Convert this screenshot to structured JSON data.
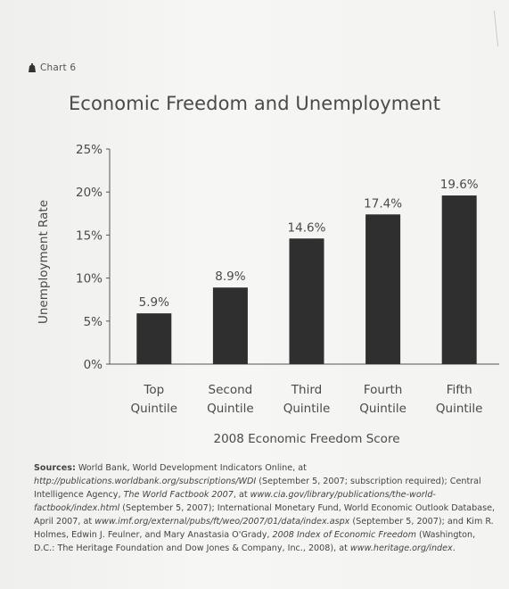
{
  "chart_tag": "Chart 6",
  "chart_data": {
    "type": "bar",
    "title": "Economic Freedom and Unemployment",
    "xlabel": "2008 Economic Freedom Score",
    "ylabel": "Unemployment Rate",
    "categories": [
      [
        "Top",
        "Quintile"
      ],
      [
        "Second",
        "Quintile"
      ],
      [
        "Third",
        "Quintile"
      ],
      [
        "Fourth",
        "Quintile"
      ],
      [
        "Fifth",
        "Quintile"
      ]
    ],
    "values": [
      5.9,
      8.9,
      14.6,
      17.4,
      19.6
    ],
    "value_labels": [
      "5.9%",
      "8.9%",
      "14.6%",
      "17.4%",
      "19.6%"
    ],
    "ylim": [
      0,
      25
    ],
    "yticks": [
      0,
      5,
      10,
      15,
      20,
      25
    ],
    "ytick_labels": [
      "0%",
      "5%",
      "10%",
      "15%",
      "20%",
      "25%"
    ],
    "bar_color": "#2f2f2f",
    "grid": false
  },
  "sources": {
    "label": "Sources:",
    "t1": " World Bank, World Development Indicators Online, at ",
    "u1": "http://publications.worldbank.org/subscriptions/WDI",
    "t2": " (September 5, 2007; subscription required); Central Intelligence Agency, ",
    "i1": "The World Factbook 2007",
    "t3": ", at ",
    "u2": "www.cia.gov/library/publications/the-world-factbook/index.html",
    "t4": " (September 5, 2007); International Monetary Fund, World Economic Outlook Database, April 2007, at ",
    "u3": "www.imf.org/external/pubs/ft/weo/2007/01/data/index.aspx",
    "t5": " (September 5, 2007); and Kim R. Holmes, Edwin J. Feulner, and Mary Anastasia O'Grady, ",
    "i2": "2008 Index of Economic Freedom",
    "t6": " (Washington, D.C.: The Heritage Foundation and Dow Jones & Company, Inc., 2008), at ",
    "u4": "www.heritage.org/index",
    "t7": "."
  }
}
